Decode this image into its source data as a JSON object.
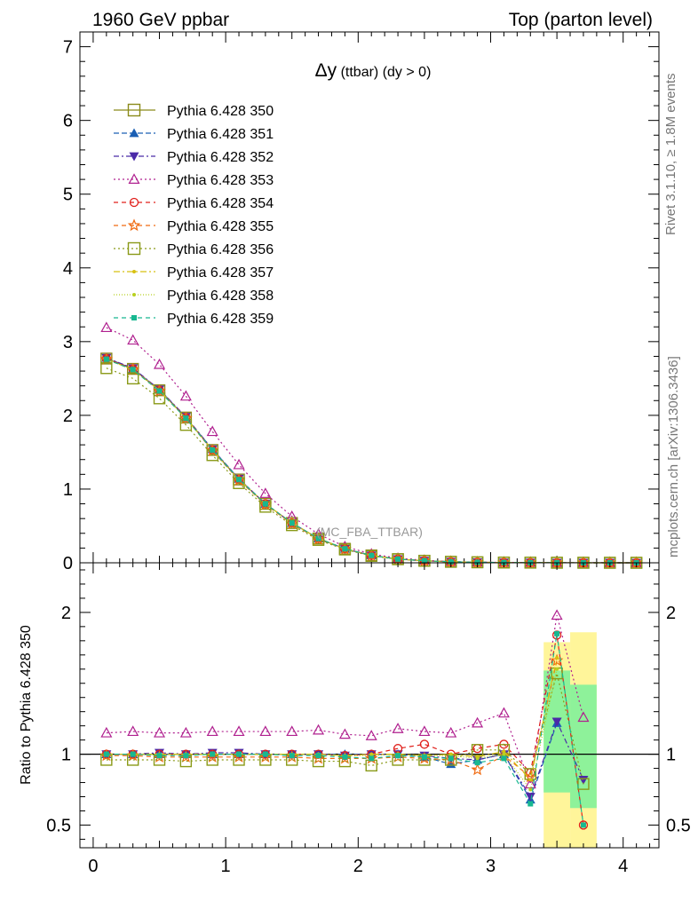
{
  "header": {
    "left": "1960 GeV ppbar",
    "right": "Top (parton level)"
  },
  "side_labels": {
    "rivet": "Rivet 3.1.10, ≥ 1.8M events",
    "mcplots": "mcplots.cern.ch [arXiv:1306.3436]"
  },
  "chart_data": [
    {
      "type": "line",
      "title_main": "Δy",
      "title_sub": " (ttbar) (dy > 0)",
      "watermark": "(MC_FBA_TTBAR)",
      "xlim": [
        -0.1,
        4.27
      ],
      "ylim": [
        0,
        7.2
      ],
      "yticks": [
        0,
        1,
        2,
        3,
        4,
        5,
        6,
        7
      ],
      "x": [
        0.1,
        0.3,
        0.5,
        0.7,
        0.9,
        1.1,
        1.3,
        1.5,
        1.7,
        1.9,
        2.1,
        2.3,
        2.5,
        2.7,
        2.9,
        3.1,
        3.3,
        3.5,
        3.7,
        3.9,
        4.1
      ],
      "series": [
        {
          "name": "Pythia 6.428 350",
          "color": "#8a8a1a",
          "dash": "",
          "marker": "square-open",
          "values": [
            2.77,
            2.63,
            2.34,
            1.97,
            1.53,
            1.13,
            0.8,
            0.54,
            0.33,
            0.19,
            0.1,
            0.05,
            0.028,
            0.014,
            0.007,
            0.004,
            0.002,
            0.001,
            0.001,
            0.0005,
            0.0003
          ]
        },
        {
          "name": "Pythia 6.428 351",
          "color": "#1a5fb4",
          "dash": "6,3",
          "marker": "triangle-up-filled",
          "values": [
            2.78,
            2.63,
            2.35,
            1.97,
            1.54,
            1.14,
            0.8,
            0.54,
            0.33,
            0.19,
            0.1,
            0.05,
            0.028,
            0.014,
            0.007,
            0.004,
            0.002,
            0.001,
            0.001,
            0.0005,
            0.0003
          ]
        },
        {
          "name": "Pythia 6.428 352",
          "color": "#4b2aa8",
          "dash": "6,3,2,3",
          "marker": "triangle-down-filled",
          "values": [
            2.78,
            2.64,
            2.35,
            1.98,
            1.54,
            1.14,
            0.8,
            0.54,
            0.33,
            0.19,
            0.1,
            0.05,
            0.028,
            0.014,
            0.007,
            0.004,
            0.002,
            0.001,
            0.001,
            0.0005,
            0.0003
          ]
        },
        {
          "name": "Pythia 6.428 353",
          "color": "#b0208f",
          "dash": "2,3",
          "marker": "triangle-up-open",
          "values": [
            3.19,
            3.02,
            2.69,
            2.26,
            1.78,
            1.33,
            0.94,
            0.63,
            0.39,
            0.22,
            0.12,
            0.062,
            0.034,
            0.017,
            0.009,
            0.005,
            0.0025,
            0.0012,
            0.0008,
            0.0004,
            0.0002
          ]
        },
        {
          "name": "Pythia 6.428 354",
          "color": "#e0201b",
          "dash": "5,4",
          "marker": "circle-open",
          "values": [
            2.77,
            2.63,
            2.34,
            1.97,
            1.53,
            1.13,
            0.8,
            0.54,
            0.33,
            0.19,
            0.1,
            0.052,
            0.029,
            0.014,
            0.007,
            0.004,
            0.002,
            0.001,
            0.0005,
            0.0003,
            0.0002
          ]
        },
        {
          "name": "Pythia 6.428 355",
          "color": "#f06a10",
          "dash": "5,4",
          "marker": "star-open",
          "values": [
            2.76,
            2.62,
            2.33,
            1.96,
            1.52,
            1.12,
            0.79,
            0.53,
            0.32,
            0.185,
            0.098,
            0.049,
            0.027,
            0.013,
            0.006,
            0.0035,
            0.0018,
            0.0009,
            0.0005,
            0.0003,
            0.0002
          ]
        },
        {
          "name": "Pythia 6.428 356",
          "color": "#8a9a18",
          "dash": "2,3",
          "marker": "square-open",
          "values": [
            2.64,
            2.5,
            2.23,
            1.87,
            1.46,
            1.08,
            0.76,
            0.51,
            0.31,
            0.18,
            0.093,
            0.048,
            0.027,
            0.013,
            0.007,
            0.0038,
            0.0018,
            0.0009,
            0.0005,
            0.0003,
            0.0002
          ]
        },
        {
          "name": "Pythia 6.428 357",
          "color": "#d8c010",
          "dash": "7,3,2,3",
          "marker": "dot-small",
          "values": [
            2.76,
            2.62,
            2.34,
            1.96,
            1.53,
            1.13,
            0.8,
            0.54,
            0.33,
            0.19,
            0.1,
            0.05,
            0.028,
            0.014,
            0.007,
            0.004,
            0.002,
            0.001,
            0.0005,
            0.0003,
            0.0002
          ]
        },
        {
          "name": "Pythia 6.428 358",
          "color": "#b8d020",
          "dash": "1,2",
          "marker": "dot-small",
          "values": [
            2.76,
            2.62,
            2.34,
            1.96,
            1.53,
            1.13,
            0.8,
            0.54,
            0.33,
            0.19,
            0.1,
            0.05,
            0.028,
            0.014,
            0.007,
            0.004,
            0.002,
            0.001,
            0.0005,
            0.0003,
            0.0002
          ]
        },
        {
          "name": "Pythia 6.428 359",
          "color": "#18b890",
          "dash": "5,4",
          "marker": "square-small-filled",
          "values": [
            2.76,
            2.62,
            2.33,
            1.96,
            1.53,
            1.13,
            0.8,
            0.54,
            0.33,
            0.19,
            0.1,
            0.05,
            0.028,
            0.014,
            0.007,
            0.004,
            0.002,
            0.001,
            0.0005,
            0.0003,
            0.0002
          ]
        }
      ]
    },
    {
      "type": "line",
      "ylabel": "Ratio to Pythia 6.428 350",
      "xlim": [
        -0.1,
        4.27
      ],
      "ylim": [
        0.34,
        2.35
      ],
      "xticks": [
        0,
        1,
        2,
        3,
        4
      ],
      "yticks_labeled": [
        0.5,
        1,
        2
      ],
      "band_x": [
        3.4,
        3.6,
        3.8
      ],
      "band_yellow": [
        [
          0.34,
          1.79
        ],
        [
          0.34,
          1.86
        ]
      ],
      "band_green": [
        [
          0.73,
          1.59
        ],
        [
          0.62,
          1.49
        ]
      ],
      "x": [
        0.1,
        0.3,
        0.5,
        0.7,
        0.9,
        1.1,
        1.3,
        1.5,
        1.7,
        1.9,
        2.1,
        2.3,
        2.5,
        2.7,
        2.9,
        3.1,
        3.3,
        3.5,
        3.7
      ],
      "series": [
        {
          "name": "Pythia 6.428 351",
          "values": [
            1.0,
            1.0,
            1.0,
            1.0,
            1.0,
            1.0,
            1.0,
            1.0,
            1.0,
            1.0,
            1.0,
            1.0,
            0.98,
            0.93,
            0.96,
            1.0,
            0.68,
            1.22,
            null
          ]
        },
        {
          "name": "Pythia 6.428 352",
          "values": [
            1.0,
            1.0,
            1.01,
            1.0,
            1.01,
            1.01,
            1.0,
            1.0,
            1.0,
            0.99,
            1.0,
            1.0,
            0.99,
            0.97,
            0.96,
            1.0,
            0.7,
            1.23,
            0.82
          ]
        },
        {
          "name": "Pythia 6.428 353",
          "values": [
            1.15,
            1.16,
            1.15,
            1.15,
            1.16,
            1.16,
            1.16,
            1.16,
            1.17,
            1.14,
            1.13,
            1.18,
            1.16,
            1.15,
            1.22,
            1.29,
            0.79,
            1.98,
            1.26
          ]
        },
        {
          "name": "Pythia 6.428 354",
          "values": [
            1.0,
            1.0,
            1.0,
            1.0,
            1.0,
            1.0,
            1.0,
            1.0,
            1.0,
            0.99,
            1.0,
            1.04,
            1.07,
            1.0,
            1.04,
            1.07,
            0.87,
            1.84,
            0.5
          ]
        },
        {
          "name": "Pythia 6.428 355",
          "values": [
            0.99,
            0.99,
            0.98,
            0.98,
            0.98,
            0.98,
            0.98,
            0.98,
            0.97,
            0.97,
            0.97,
            0.98,
            0.97,
            0.96,
            0.89,
            0.99,
            0.84,
            1.66,
            null
          ]
        },
        {
          "name": "Pythia 6.428 356",
          "values": [
            0.96,
            0.96,
            0.96,
            0.95,
            0.96,
            0.96,
            0.96,
            0.96,
            0.95,
            0.95,
            0.92,
            0.96,
            0.96,
            0.96,
            1.03,
            1.03,
            0.86,
            1.57,
            0.79
          ]
        },
        {
          "name": "Pythia 6.428 357",
          "values": [
            1.0,
            1.0,
            1.0,
            1.0,
            1.0,
            1.0,
            1.0,
            1.0,
            1.0,
            0.99,
            1.0,
            1.0,
            0.99,
            1.0,
            0.98,
            1.02,
            0.82,
            1.68,
            null
          ]
        },
        {
          "name": "Pythia 6.428 358",
          "values": [
            1.0,
            1.0,
            1.0,
            1.0,
            1.0,
            1.0,
            1.0,
            1.0,
            1.0,
            0.99,
            0.99,
            1.0,
            0.99,
            0.99,
            0.97,
            1.0,
            0.75,
            1.6,
            null
          ]
        },
        {
          "name": "Pythia 6.428 359",
          "values": [
            1.0,
            1.0,
            0.99,
            0.99,
            1.0,
            1.0,
            1.0,
            0.99,
            0.99,
            0.98,
            0.97,
            0.99,
            0.98,
            0.97,
            0.94,
            0.97,
            0.65,
            1.85,
            0.5
          ]
        }
      ]
    }
  ]
}
